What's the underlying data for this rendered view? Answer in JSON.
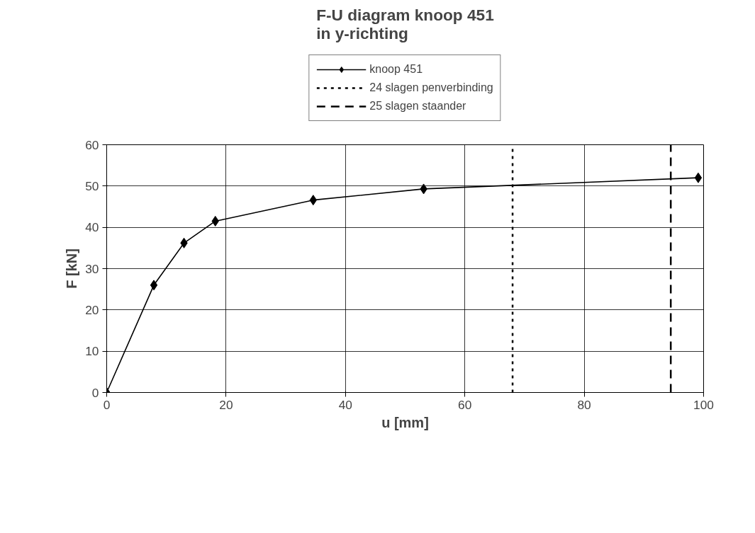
{
  "chart_data": {
    "type": "line",
    "title": "F-U diagram knoop 451\nin y-richting",
    "xlabel": "u [mm]",
    "ylabel": "F [kN]",
    "x": [
      0,
      7.9,
      12.95,
      18.2,
      34.6,
      53.1,
      99.1
    ],
    "series": [
      {
        "name": "knoop 451",
        "color": "#000000",
        "values": [
          0,
          26.0,
          36.2,
          41.5,
          46.6,
          49.3,
          52.0
        ]
      }
    ],
    "ref_lines": [
      {
        "axis": "x",
        "value": 68.0,
        "label": "24 slagen penverbinding",
        "color": "#000000",
        "line_style": "dotted"
      },
      {
        "axis": "x",
        "value": 94.5,
        "label": "25 slagen staander",
        "color": "#000000",
        "line_style": "dashed"
      }
    ],
    "xlim": [
      0,
      100
    ],
    "xticks": [
      0,
      20,
      40,
      60,
      80,
      100
    ],
    "ylim": [
      0,
      60
    ],
    "yticks": [
      0,
      10,
      20,
      30,
      40,
      50,
      60
    ],
    "grid": true,
    "legend": "top",
    "marker": "diamond",
    "line_style": "solid"
  }
}
